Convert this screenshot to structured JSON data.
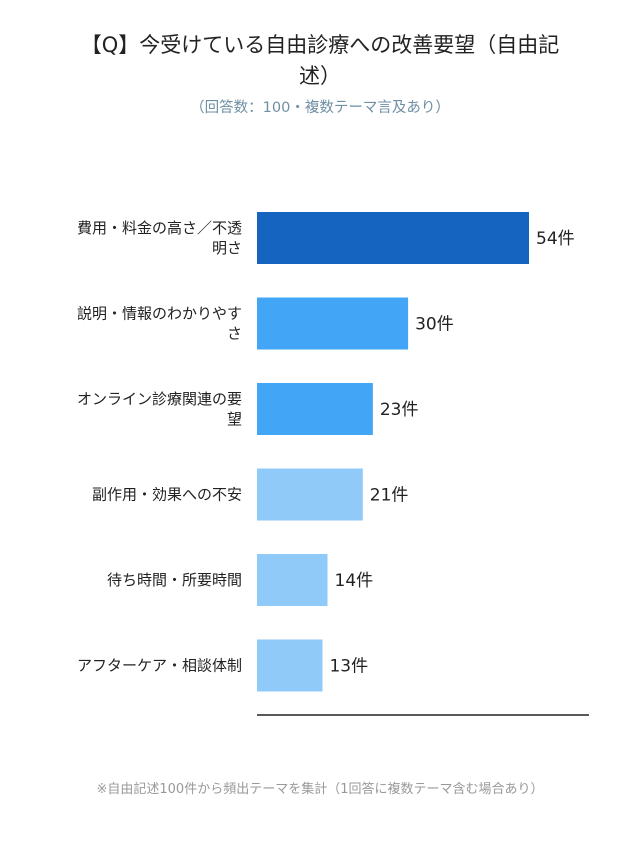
{
  "title": "【Q】今受けている自由診療への改善要望（自由記述）",
  "subtitle": "（回答数：100・複数テーマ言及あり）",
  "footnote": "※自由記述100件から頻出テーマを集計（1回答に複数テーマ含む場合あり）",
  "chart_data": {
    "type": "bar",
    "orientation": "horizontal",
    "categories": [
      [
        "費用・料金の高さ／不透",
        "明さ"
      ],
      [
        "説明・情報のわかりやす",
        "さ"
      ],
      [
        "オンライン診療関連の要",
        "望"
      ],
      [
        "副作用・効果への不安"
      ],
      [
        "待ち時間・所要時間"
      ],
      [
        "アフターケア・相談体制"
      ]
    ],
    "values": [
      54,
      30,
      23,
      21,
      14,
      13
    ],
    "value_labels": [
      "54件",
      "30件",
      "23件",
      "21件",
      "14件",
      "13件"
    ],
    "colors": [
      "#1565c0",
      "#42a5f5",
      "#42a5f5",
      "#90caf9",
      "#90caf9",
      "#90caf9"
    ],
    "unit": "件",
    "xlim": [
      0,
      65
    ]
  }
}
